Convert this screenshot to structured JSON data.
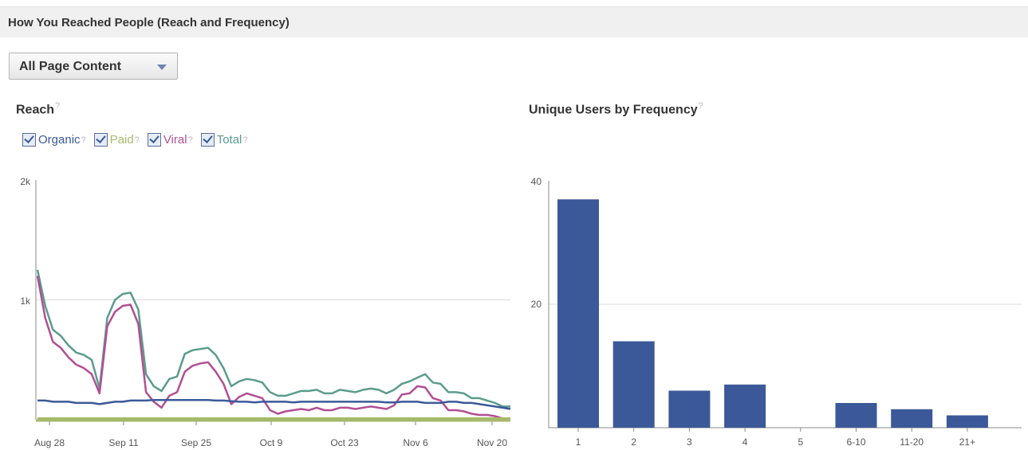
{
  "header": {
    "title": "How You Reached People (Reach and Frequency)"
  },
  "filter": {
    "label": "All Page Content"
  },
  "help_mark": "?",
  "reach": {
    "title": "Reach",
    "legend": [
      {
        "label": "Organic",
        "color": "#3b5998"
      },
      {
        "label": "Paid",
        "color": "#a6b96a"
      },
      {
        "label": "Viral",
        "color": "#b14f95"
      },
      {
        "label": "Total",
        "color": "#5b9c8b"
      }
    ]
  },
  "frequency": {
    "title": "Unique Users by Frequency"
  },
  "chart_data": [
    {
      "type": "line",
      "title": "Reach",
      "y_ticks": [
        "2k",
        "1k"
      ],
      "x_ticks": [
        "Aug 28",
        "Sep 11",
        "Sep 25",
        "Oct 9",
        "Oct 23",
        "Nov 6",
        "Nov 20"
      ],
      "ylim": [
        0,
        2000
      ],
      "grid": true,
      "series": [
        {
          "name": "Total",
          "color": "#5b9c8b",
          "values": [
            1250,
            950,
            750,
            700,
            620,
            560,
            540,
            500,
            260,
            850,
            1000,
            1050,
            1060,
            920,
            380,
            280,
            240,
            340,
            360,
            550,
            580,
            590,
            600,
            540,
            430,
            280,
            320,
            340,
            330,
            310,
            230,
            200,
            200,
            220,
            240,
            240,
            250,
            220,
            220,
            250,
            240,
            230,
            250,
            260,
            250,
            220,
            250,
            300,
            320,
            350,
            380,
            310,
            300,
            230,
            230,
            220,
            180,
            180,
            160,
            140,
            110,
            110
          ]
        },
        {
          "name": "Viral",
          "color": "#b14f95",
          "values": [
            1200,
            850,
            650,
            600,
            520,
            460,
            430,
            380,
            220,
            780,
            900,
            950,
            960,
            800,
            230,
            150,
            100,
            200,
            230,
            400,
            450,
            470,
            480,
            400,
            300,
            130,
            190,
            220,
            200,
            180,
            80,
            50,
            70,
            80,
            90,
            80,
            100,
            80,
            80,
            100,
            100,
            90,
            100,
            110,
            100,
            90,
            120,
            210,
            220,
            280,
            270,
            180,
            160,
            80,
            80,
            70,
            50,
            40,
            40,
            30,
            10,
            0
          ]
        },
        {
          "name": "Organic",
          "color": "#3b5998",
          "values": [
            160,
            160,
            150,
            150,
            150,
            140,
            140,
            140,
            130,
            140,
            150,
            150,
            160,
            160,
            160,
            165,
            165,
            165,
            165,
            165,
            165,
            165,
            165,
            160,
            160,
            155,
            150,
            150,
            145,
            150,
            150,
            150,
            150,
            145,
            150,
            150,
            150,
            150,
            150,
            150,
            150,
            150,
            150,
            150,
            150,
            145,
            145,
            150,
            150,
            150,
            140,
            140,
            140,
            150,
            150,
            140,
            140,
            130,
            120,
            110,
            100,
            90
          ]
        },
        {
          "name": "Paid",
          "color": "#a6b96a",
          "values": [
            10,
            10,
            10,
            10,
            10,
            10,
            10,
            10,
            10,
            10,
            10,
            10,
            10,
            10,
            10,
            10,
            10,
            10,
            10,
            10,
            10,
            10,
            10,
            10,
            10,
            10,
            10,
            10,
            10,
            10,
            10,
            10,
            10,
            10,
            10,
            10,
            10,
            10,
            10,
            10,
            10,
            10,
            10,
            10,
            10,
            10,
            10,
            10,
            10,
            10,
            10,
            10,
            10,
            10,
            10,
            10,
            10,
            10,
            10,
            10,
            10,
            10
          ]
        }
      ]
    },
    {
      "type": "bar",
      "title": "Unique Users by Frequency",
      "categories": [
        "1",
        "2",
        "3",
        "4",
        "5",
        "6-10",
        "11-20",
        "21+"
      ],
      "values": [
        37,
        14,
        6,
        7,
        0,
        4,
        3,
        2
      ],
      "y_ticks": [
        40,
        20
      ],
      "ylim": [
        0,
        40
      ],
      "color": "#3b5998",
      "grid": true
    }
  ]
}
